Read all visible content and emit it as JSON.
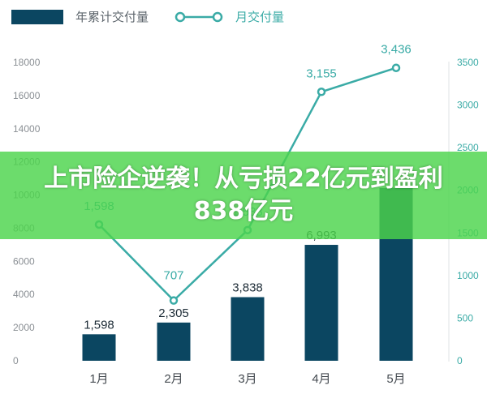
{
  "chart_data": {
    "type": "bar",
    "categories": [
      "1月",
      "2月",
      "3月",
      "4月",
      "5月"
    ],
    "series": [
      {
        "name": "年累计交付量",
        "type": "bar",
        "axis": "left",
        "values": [
          1598,
          2305,
          3838,
          6993,
          10429
        ]
      },
      {
        "name": "月交付量",
        "type": "line",
        "axis": "right",
        "values": [
          1598,
          707,
          1533,
          3155,
          3436
        ]
      }
    ],
    "bar_labels": [
      "1,598",
      "2,305",
      "3,838",
      "6,993",
      ""
    ],
    "line_labels": [
      "1,598",
      "707",
      "1,533",
      "3,155",
      "3,436"
    ],
    "ylim_left": [
      0,
      18000
    ],
    "yticks_left": [
      "0",
      "2000",
      "4000",
      "6000",
      "8000",
      "10000",
      "12000",
      "14000",
      "16000",
      "18000"
    ],
    "ylim_right": [
      0,
      3500
    ],
    "yticks_right": [
      "0",
      "500",
      "1000",
      "1500",
      "2000",
      "2500",
      "3000",
      "3500"
    ],
    "grid": false,
    "legend": "top-left",
    "colors": {
      "bar": "#0b4661",
      "line": "#3aaba6"
    }
  },
  "overlay": {
    "text": "上市险企逆袭！从亏损22亿元到盈利838亿元",
    "background": "#4cd44c"
  }
}
